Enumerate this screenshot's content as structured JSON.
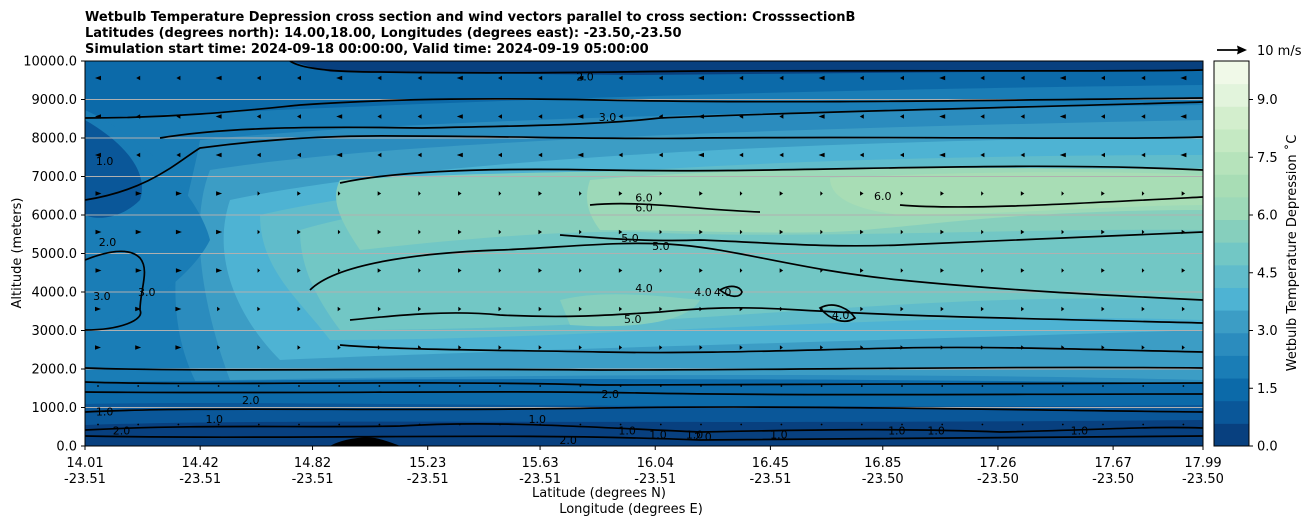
{
  "chart_data": {
    "type": "contour-cross-section",
    "title_lines": [
      "Wetbulb Temperature Depression cross section and wind vectors parallel to cross section: CrosssectionB",
      "Latitudes (degrees north): 14.00,18.00, Longitudes (degrees east): -23.50,-23.50",
      "Simulation start time: 2024-09-18 00:00:00, Valid time: 2024-09-19 05:00:00"
    ],
    "ylabel": "Altitude (meters)",
    "xlabel_lat": "Latitude (degrees N)",
    "xlabel_lon": "Longitude (degrees E)",
    "ylim": [
      0,
      10000
    ],
    "yticks": [
      0,
      1000,
      2000,
      3000,
      4000,
      5000,
      6000,
      7000,
      8000,
      9000,
      10000
    ],
    "ytick_labels": [
      "0.0",
      "1000.0",
      "2000.0",
      "3000.0",
      "4000.0",
      "5000.0",
      "6000.0",
      "7000.0",
      "8000.0",
      "9000.0",
      "10000.0"
    ],
    "x_range": [
      14.01,
      17.99
    ],
    "xticks": [
      {
        "lat": "14.01",
        "lon": "-23.51"
      },
      {
        "lat": "14.42",
        "lon": "-23.51"
      },
      {
        "lat": "14.82",
        "lon": "-23.51"
      },
      {
        "lat": "15.23",
        "lon": "-23.51"
      },
      {
        "lat": "15.63",
        "lon": "-23.51"
      },
      {
        "lat": "16.04",
        "lon": "-23.51"
      },
      {
        "lat": "16.45",
        "lon": "-23.51"
      },
      {
        "lat": "16.85",
        "lon": "-23.50"
      },
      {
        "lat": "17.26",
        "lon": "-23.50"
      },
      {
        "lat": "17.67",
        "lon": "-23.50"
      },
      {
        "lat": "17.99",
        "lon": "-23.50"
      }
    ],
    "colorbar": {
      "label": "Wetbulb Temperature Depression ˚C",
      "range": [
        0,
        10
      ],
      "ticks": [
        "0.0",
        "1.5",
        "3.0",
        "4.5",
        "6.0",
        "7.5",
        "9.0"
      ],
      "colors": [
        "#08407f",
        "#0a5799",
        "#0c6aa9",
        "#1a7db6",
        "#2b8cbe",
        "#3c9dc5",
        "#4eb3d3",
        "#60bccb",
        "#72c7c5",
        "#86cfbd",
        "#9dd9b8",
        "#a8ddb5",
        "#b6e3bb",
        "#c5e9c3",
        "#d3eecd",
        "#e2f4dc",
        "#f0f9e8"
      ]
    },
    "quiver_key": {
      "label": "10 m/s",
      "speed": 10
    },
    "contour_labels": [
      {
        "text": "2.0",
        "lat": 15.79,
        "alt": 9600
      },
      {
        "text": "3.0",
        "lat": 15.87,
        "alt": 8550
      },
      {
        "text": "1.0",
        "lat": 14.08,
        "alt": 7400
      },
      {
        "text": "6.0",
        "lat": 16.0,
        "alt": 6450
      },
      {
        "text": "6.0",
        "lat": 16.0,
        "alt": 6200
      },
      {
        "text": "6.0",
        "lat": 16.85,
        "alt": 6500
      },
      {
        "text": "5.0",
        "lat": 15.95,
        "alt": 5400
      },
      {
        "text": "5.0",
        "lat": 16.06,
        "alt": 5200
      },
      {
        "text": "2.0",
        "lat": 14.09,
        "alt": 5300
      },
      {
        "text": "3.0",
        "lat": 14.23,
        "alt": 4000
      },
      {
        "text": "3.0",
        "lat": 14.07,
        "alt": 3900
      },
      {
        "text": "4.0",
        "lat": 16.0,
        "alt": 4100
      },
      {
        "text": "4.0",
        "lat": 16.21,
        "alt": 4000
      },
      {
        "text": "4.0",
        "lat": 16.28,
        "alt": 4000
      },
      {
        "text": "4.0",
        "lat": 16.7,
        "alt": 3400
      },
      {
        "text": "5.0",
        "lat": 15.96,
        "alt": 3300
      },
      {
        "text": "2.0",
        "lat": 15.88,
        "alt": 1350
      },
      {
        "text": "1.0",
        "lat": 15.62,
        "alt": 700
      },
      {
        "text": "1.0",
        "lat": 14.08,
        "alt": 900
      },
      {
        "text": "2.0",
        "lat": 14.14,
        "alt": 400
      },
      {
        "text": "1.0",
        "lat": 14.47,
        "alt": 700
      },
      {
        "text": "2.0",
        "lat": 14.6,
        "alt": 1200
      },
      {
        "text": "1.0",
        "lat": 15.94,
        "alt": 400
      },
      {
        "text": "1.0",
        "lat": 16.05,
        "alt": 300
      },
      {
        "text": "2.0",
        "lat": 15.73,
        "alt": 150
      },
      {
        "text": "1.0",
        "lat": 16.18,
        "alt": 300
      },
      {
        "text": "2.0",
        "lat": 16.21,
        "alt": 250
      },
      {
        "text": "1.0",
        "lat": 16.48,
        "alt": 300
      },
      {
        "text": "1.0",
        "lat": 16.9,
        "alt": 400
      },
      {
        "text": "1.0",
        "lat": 17.04,
        "alt": 400
      },
      {
        "text": "1.0",
        "lat": 17.55,
        "alt": 400
      }
    ]
  }
}
